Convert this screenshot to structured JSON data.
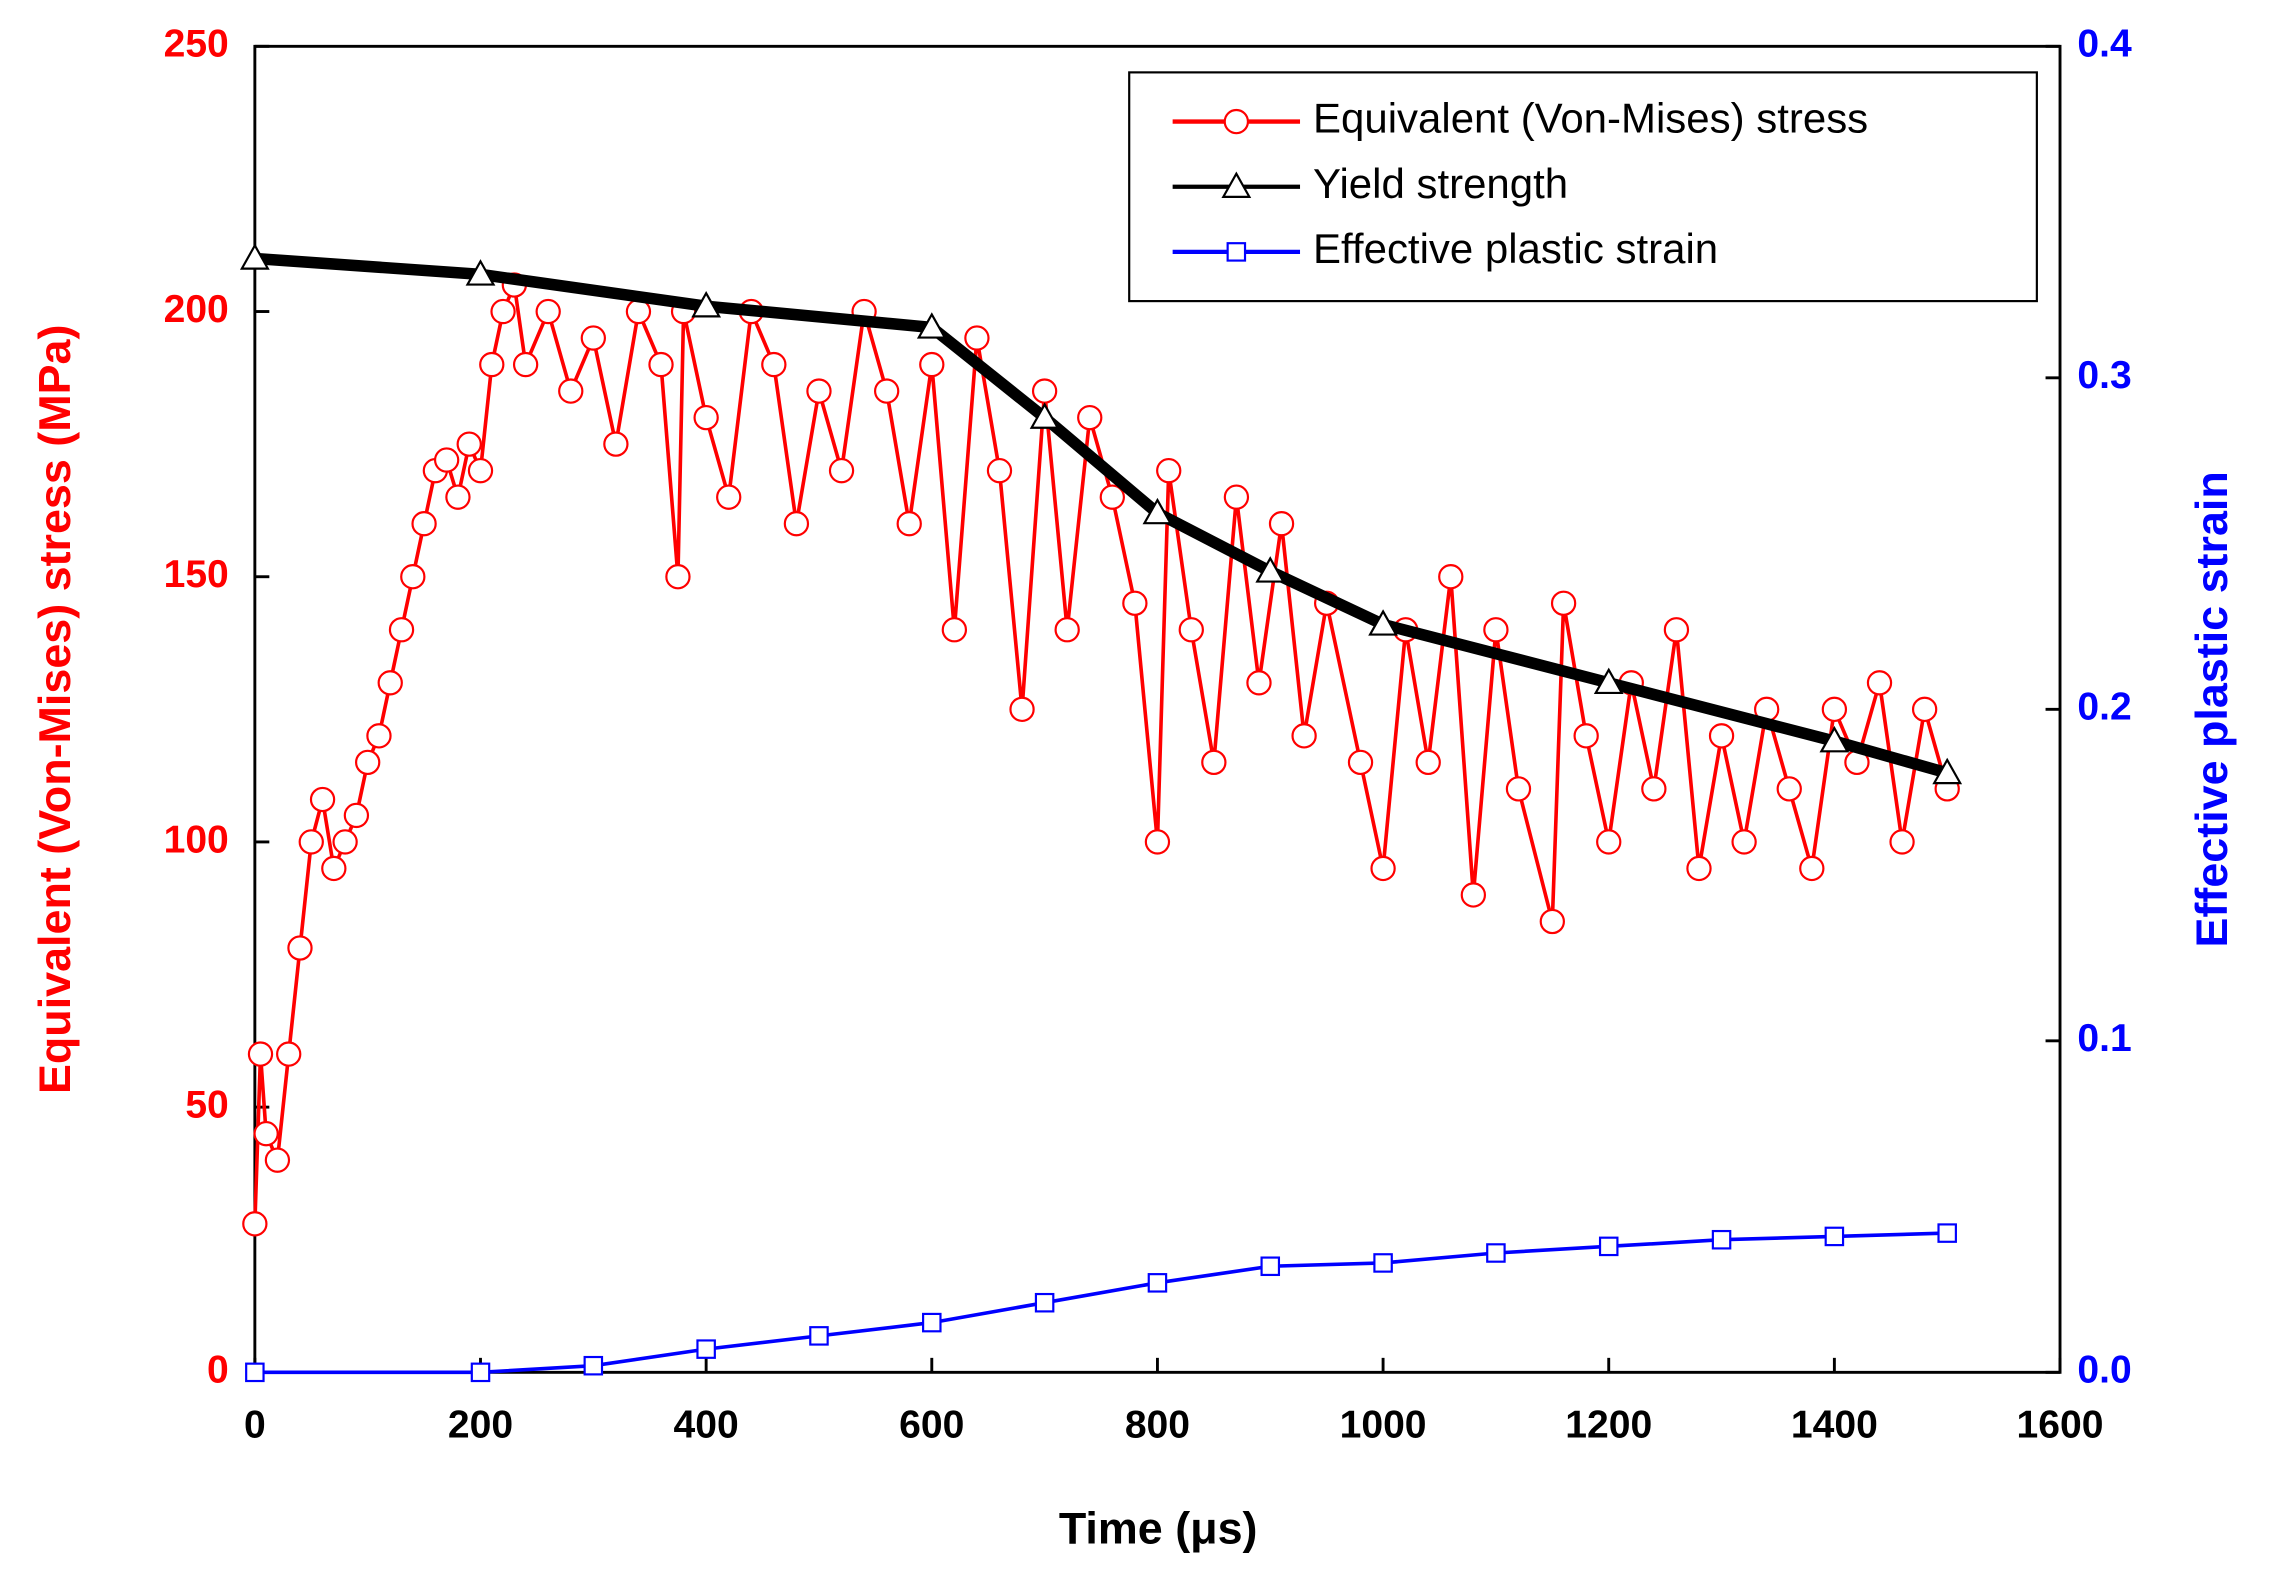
{
  "chart_data": {
    "type": "line",
    "xlabel": "Time (μs)",
    "ylabel": "Equivalent (Von-Mises) stress (MPa)",
    "y2label": "Effective plastic strain",
    "xlim": [
      0,
      1600
    ],
    "xticks": [
      0,
      200,
      400,
      600,
      800,
      1000,
      1200,
      1400,
      1600
    ],
    "ylim": [
      0,
      250
    ],
    "yticks": [
      0,
      50,
      100,
      150,
      200,
      250
    ],
    "y2lim": [
      0,
      0.4
    ],
    "y2ticks": [
      {
        "value": 0,
        "label": "0.0"
      },
      0.1,
      0.2,
      0.3,
      0.4
    ],
    "ycolor": "#ff0000",
    "y2color": "#0000ff",
    "legend": "upper right",
    "series": [
      {
        "name": "Equivalent (Von-Mises) stress",
        "color": "#ff0000",
        "marker": "circle",
        "x": [
          0,
          5,
          10,
          20,
          30,
          40,
          50,
          60,
          70,
          80,
          90,
          100,
          110,
          120,
          130,
          140,
          150,
          160,
          170,
          180,
          190,
          200,
          210,
          220,
          230,
          240,
          260,
          280,
          300,
          320,
          340,
          360,
          375,
          380,
          400,
          420,
          440,
          460,
          480,
          500,
          520,
          540,
          560,
          580,
          600,
          620,
          640,
          660,
          680,
          700,
          720,
          740,
          760,
          780,
          800,
          810,
          830,
          850,
          870,
          890,
          910,
          930,
          950,
          980,
          1000,
          1020,
          1040,
          1060,
          1080,
          1100,
          1120,
          1150,
          1160,
          1180,
          1200,
          1220,
          1240,
          1260,
          1280,
          1300,
          1320,
          1340,
          1360,
          1380,
          1400,
          1420,
          1440,
          1460,
          1480,
          1500
        ],
        "values": [
          28,
          60,
          45,
          40,
          60,
          80,
          100,
          108,
          95,
          100,
          105,
          115,
          120,
          130,
          140,
          150,
          160,
          170,
          172,
          165,
          175,
          170,
          190,
          200,
          205,
          190,
          200,
          185,
          195,
          175,
          200,
          190,
          150,
          200,
          180,
          165,
          200,
          190,
          160,
          185,
          170,
          200,
          185,
          160,
          190,
          140,
          195,
          170,
          125,
          185,
          140,
          180,
          165,
          145,
          100,
          170,
          140,
          115,
          165,
          130,
          160,
          120,
          145,
          115,
          95,
          140,
          115,
          150,
          90,
          140,
          110,
          85,
          145,
          120,
          100,
          130,
          110,
          140,
          95,
          120,
          100,
          125,
          110,
          95,
          125,
          115,
          130,
          100,
          125,
          110
        ]
      },
      {
        "name": "Yield strength",
        "color": "#000000",
        "marker": "triangle",
        "x": [
          0,
          200,
          400,
          600,
          700,
          800,
          900,
          1000,
          1200,
          1400,
          1500
        ],
        "values": [
          210,
          207,
          201,
          197,
          180,
          162,
          151,
          141,
          130,
          119,
          113
        ]
      },
      {
        "name": "Effective plastic strain",
        "color": "#0000ff",
        "marker": "square",
        "axis": "y2",
        "x": [
          0,
          200,
          300,
          400,
          500,
          600,
          700,
          800,
          900,
          1000,
          1100,
          1200,
          1300,
          1400,
          1500
        ],
        "values": [
          0,
          0,
          0.002,
          0.007,
          0.011,
          0.015,
          0.021,
          0.027,
          0.032,
          0.033,
          0.036,
          0.038,
          0.04,
          0.041,
          0.042
        ]
      }
    ]
  }
}
